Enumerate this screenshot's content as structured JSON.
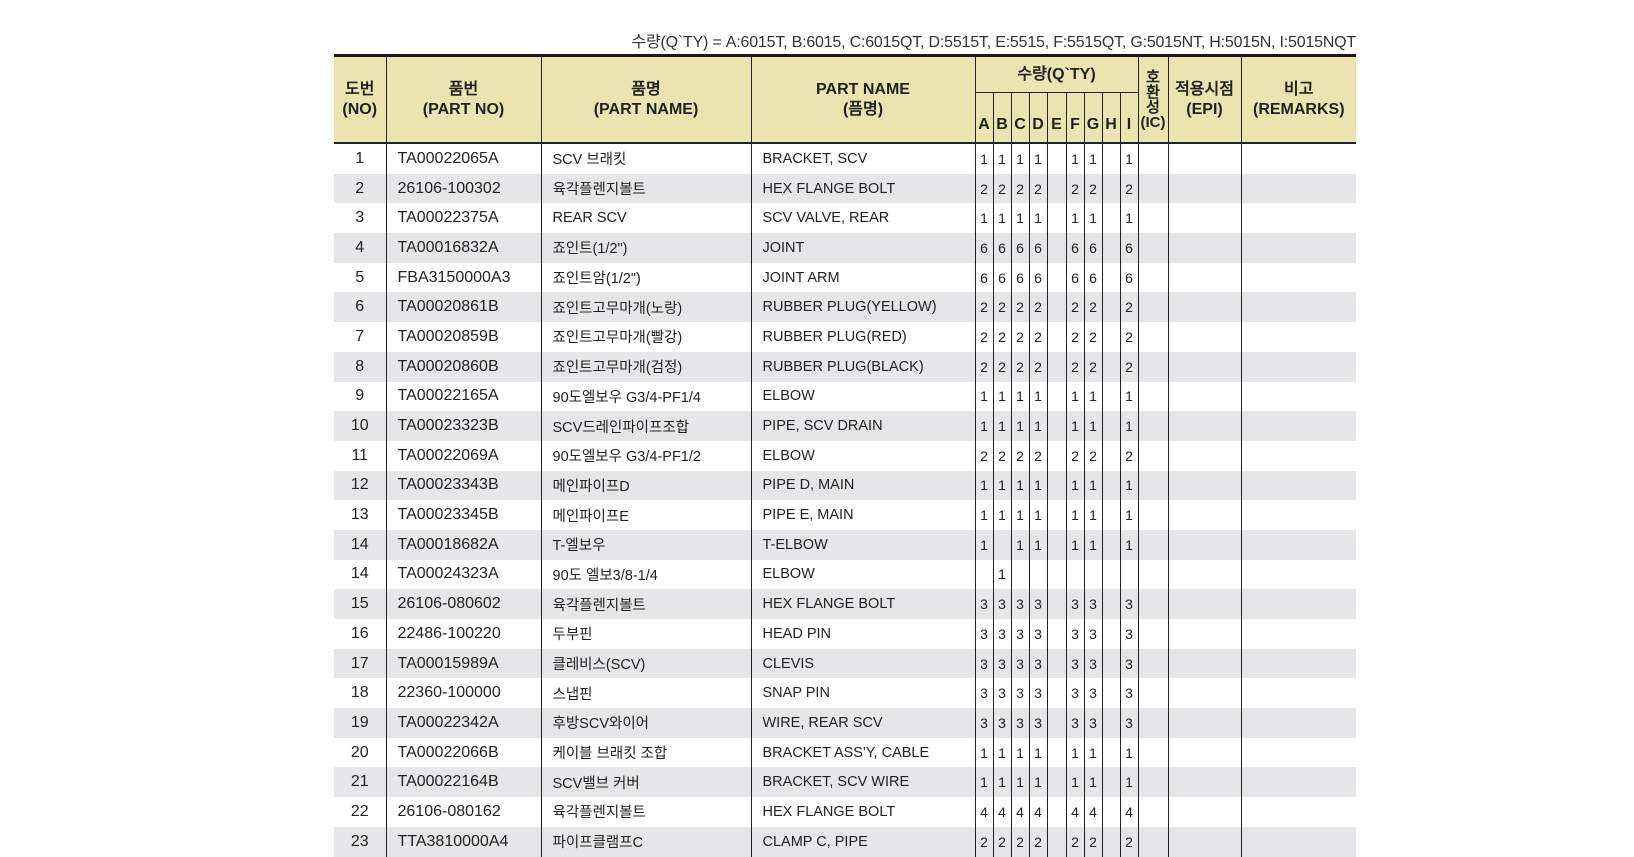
{
  "legend": "수량(Q`TY) =  A:6015T, B:6015, C:6015QT, D:5515T, E:5515, F:5515QT, G:5015NT, H:5015N, I:5015NQT",
  "colors": {
    "header_bg": "#ebe4b0",
    "stripe_bg": "#e6e6e8"
  },
  "header": {
    "no": [
      "도번",
      "(NO)"
    ],
    "part_no": [
      "품번",
      "(PART NO)"
    ],
    "part_name_kr": [
      "품명",
      "(PART NAME)"
    ],
    "part_name_en": [
      "PART NAME",
      "(픔명)"
    ],
    "qty": "수량(Q`TY)",
    "qty_cols": [
      "A",
      "B",
      "C",
      "D",
      "E",
      "F",
      "G",
      "H",
      "I"
    ],
    "ic": [
      "호",
      "환",
      "성",
      "(IC)"
    ],
    "epi": [
      "적용시점",
      "(EPI)"
    ],
    "remarks": [
      "비고",
      "(REMARKS)"
    ]
  },
  "rows": [
    {
      "no": "1",
      "pn": "TA00022065A",
      "kr": "SCV 브래킷",
      "en": "BRACKET, SCV",
      "qty": [
        "1",
        "1",
        "1",
        "1",
        "",
        "1",
        "1",
        "",
        "1"
      ]
    },
    {
      "no": "2",
      "pn": "26106-100302",
      "kr": "육각플렌지볼트",
      "en": "HEX FLANGE BOLT",
      "qty": [
        "2",
        "2",
        "2",
        "2",
        "",
        "2",
        "2",
        "",
        "2"
      ]
    },
    {
      "no": "3",
      "pn": "TA00022375A",
      "kr": "REAR SCV",
      "en": "SCV VALVE, REAR",
      "qty": [
        "1",
        "1",
        "1",
        "1",
        "",
        "1",
        "1",
        "",
        "1"
      ]
    },
    {
      "no": "4",
      "pn": "TA00016832A",
      "kr": "죠인트(1/2\")",
      "en": "JOINT",
      "qty": [
        "6",
        "6",
        "6",
        "6",
        "",
        "6",
        "6",
        "",
        "6"
      ]
    },
    {
      "no": "5",
      "pn": "FBA3150000A3",
      "kr": "죠인트암(1/2\")",
      "en": "JOINT ARM",
      "qty": [
        "6",
        "6",
        "6",
        "6",
        "",
        "6",
        "6",
        "",
        "6"
      ]
    },
    {
      "no": "6",
      "pn": "TA00020861B",
      "kr": "죠인트고무마개(노랑)",
      "en": "RUBBER PLUG(YELLOW)",
      "qty": [
        "2",
        "2",
        "2",
        "2",
        "",
        "2",
        "2",
        "",
        "2"
      ]
    },
    {
      "no": "7",
      "pn": "TA00020859B",
      "kr": "죠인트고무마개(빨강)",
      "en": "RUBBER PLUG(RED)",
      "qty": [
        "2",
        "2",
        "2",
        "2",
        "",
        "2",
        "2",
        "",
        "2"
      ]
    },
    {
      "no": "8",
      "pn": "TA00020860B",
      "kr": "죠인트고무마개(검정)",
      "en": "RUBBER PLUG(BLACK)",
      "qty": [
        "2",
        "2",
        "2",
        "2",
        "",
        "2",
        "2",
        "",
        "2"
      ]
    },
    {
      "no": "9",
      "pn": "TA00022165A",
      "kr": "90도엘보우 G3/4-PF1/4",
      "en": "ELBOW",
      "qty": [
        "1",
        "1",
        "1",
        "1",
        "",
        "1",
        "1",
        "",
        "1"
      ]
    },
    {
      "no": "10",
      "pn": "TA00023323B",
      "kr": "SCV드레인파이프조합",
      "en": "PIPE, SCV DRAIN",
      "qty": [
        "1",
        "1",
        "1",
        "1",
        "",
        "1",
        "1",
        "",
        "1"
      ]
    },
    {
      "no": "11",
      "pn": "TA00022069A",
      "kr": "90도엘보우 G3/4-PF1/2",
      "en": "ELBOW",
      "qty": [
        "2",
        "2",
        "2",
        "2",
        "",
        "2",
        "2",
        "",
        "2"
      ]
    },
    {
      "no": "12",
      "pn": "TA00023343B",
      "kr": "메인파이프D",
      "en": "PIPE D, MAIN",
      "qty": [
        "1",
        "1",
        "1",
        "1",
        "",
        "1",
        "1",
        "",
        "1"
      ]
    },
    {
      "no": "13",
      "pn": "TA00023345B",
      "kr": "메인파이프E",
      "en": "PIPE E, MAIN",
      "qty": [
        "1",
        "1",
        "1",
        "1",
        "",
        "1",
        "1",
        "",
        "1"
      ]
    },
    {
      "no": "14",
      "pn": "TA00018682A",
      "kr": "T-엘보우",
      "en": "T-ELBOW",
      "qty": [
        "1",
        "",
        "1",
        "1",
        "",
        "1",
        "1",
        "",
        "1"
      ]
    },
    {
      "no": "14",
      "pn": "TA00024323A",
      "kr": "90도 엘보3/8-1/4",
      "en": "ELBOW",
      "qty": [
        "",
        "1",
        "",
        "",
        "",
        "",
        "",
        "",
        ""
      ]
    },
    {
      "no": "15",
      "pn": "26106-080602",
      "kr": "육각플렌지볼트",
      "en": "HEX FLANGE BOLT",
      "qty": [
        "3",
        "3",
        "3",
        "3",
        "",
        "3",
        "3",
        "",
        "3"
      ]
    },
    {
      "no": "16",
      "pn": "22486-100220",
      "kr": "두부핀",
      "en": "HEAD PIN",
      "qty": [
        "3",
        "3",
        "3",
        "3",
        "",
        "3",
        "3",
        "",
        "3"
      ]
    },
    {
      "no": "17",
      "pn": "TA00015989A",
      "kr": "클레비스(SCV)",
      "en": "CLEVIS",
      "qty": [
        "3",
        "3",
        "3",
        "3",
        "",
        "3",
        "3",
        "",
        "3"
      ]
    },
    {
      "no": "18",
      "pn": "22360-100000",
      "kr": "스냅핀",
      "en": "SNAP PIN",
      "qty": [
        "3",
        "3",
        "3",
        "3",
        "",
        "3",
        "3",
        "",
        "3"
      ]
    },
    {
      "no": "19",
      "pn": "TA00022342A",
      "kr": "후방SCV와이어",
      "en": "WIRE, REAR SCV",
      "qty": [
        "3",
        "3",
        "3",
        "3",
        "",
        "3",
        "3",
        "",
        "3"
      ]
    },
    {
      "no": "20",
      "pn": "TA00022066B",
      "kr": "케이블 브래킷 조합",
      "en": "BRACKET ASS'Y, CABLE",
      "qty": [
        "1",
        "1",
        "1",
        "1",
        "",
        "1",
        "1",
        "",
        "1"
      ]
    },
    {
      "no": "21",
      "pn": "TA00022164B",
      "kr": "SCV밸브 커버",
      "en": "BRACKET, SCV WIRE",
      "qty": [
        "1",
        "1",
        "1",
        "1",
        "",
        "1",
        "1",
        "",
        "1"
      ]
    },
    {
      "no": "22",
      "pn": "26106-080162",
      "kr": "육각플렌지볼트",
      "en": "HEX FLANGE BOLT",
      "qty": [
        "4",
        "4",
        "4",
        "4",
        "",
        "4",
        "4",
        "",
        "4"
      ]
    },
    {
      "no": "23",
      "pn": "TTA3810000A4",
      "kr": "파이프클램프C",
      "en": "CLAMP C, PIPE",
      "qty": [
        "2",
        "2",
        "2",
        "2",
        "",
        "2",
        "2",
        "",
        "2"
      ]
    }
  ]
}
